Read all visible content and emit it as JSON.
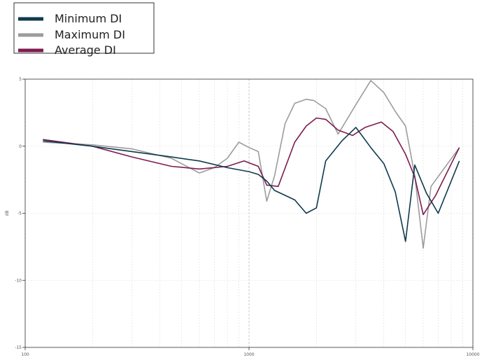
{
  "chart_data": {
    "type": "line",
    "title": "",
    "xlabel": "",
    "ylabel": "dB",
    "x_scale": "log",
    "xlim": [
      100,
      10000
    ],
    "ylim": [
      -15,
      5
    ],
    "x_ticks": [
      100,
      1000,
      10000
    ],
    "x_tick_labels": [
      "100",
      "1000",
      "10000"
    ],
    "y_ticks": [
      5,
      0,
      -5,
      -10,
      -15
    ],
    "y_tick_labels": [
      "5",
      "0",
      "-5",
      "-10",
      "-15"
    ],
    "grid": true,
    "legend_position": "top-left",
    "series": [
      {
        "name": "Minimum DI",
        "color": "#0e3a4e",
        "points": [
          [
            120,
            0.4
          ],
          [
            200,
            0.0
          ],
          [
            300,
            -0.4
          ],
          [
            450,
            -0.8
          ],
          [
            600,
            -1.1
          ],
          [
            800,
            -1.6
          ],
          [
            1000,
            -1.9
          ],
          [
            1100,
            -2.1
          ],
          [
            1200,
            -2.6
          ],
          [
            1300,
            -3.3
          ],
          [
            1600,
            -4.0
          ],
          [
            1800,
            -5.0
          ],
          [
            2000,
            -4.6
          ],
          [
            2200,
            -1.1
          ],
          [
            2600,
            0.4
          ],
          [
            3000,
            1.4
          ],
          [
            3500,
            -0.1
          ],
          [
            4000,
            -1.3
          ],
          [
            4500,
            -3.4
          ],
          [
            5000,
            -7.1
          ],
          [
            5500,
            -1.4
          ],
          [
            6200,
            -3.5
          ],
          [
            7000,
            -5.0
          ],
          [
            8700,
            -1.1
          ]
        ]
      },
      {
        "name": "Maximum DI",
        "color": "#9c9c9c",
        "points": [
          [
            120,
            0.3
          ],
          [
            200,
            0.1
          ],
          [
            300,
            -0.2
          ],
          [
            450,
            -0.9
          ],
          [
            600,
            -2.0
          ],
          [
            700,
            -1.6
          ],
          [
            800,
            -0.9
          ],
          [
            900,
            0.3
          ],
          [
            1000,
            -0.1
          ],
          [
            1100,
            -0.4
          ],
          [
            1200,
            -4.1
          ],
          [
            1300,
            -2.2
          ],
          [
            1450,
            1.7
          ],
          [
            1600,
            3.2
          ],
          [
            1800,
            3.5
          ],
          [
            1950,
            3.4
          ],
          [
            2200,
            2.8
          ],
          [
            2500,
            0.9
          ],
          [
            3000,
            3.1
          ],
          [
            3500,
            4.9
          ],
          [
            4000,
            4.0
          ],
          [
            4500,
            2.6
          ],
          [
            5000,
            1.5
          ],
          [
            5500,
            -2.2
          ],
          [
            6000,
            -7.6
          ],
          [
            6500,
            -3.0
          ],
          [
            8700,
            -0.1
          ]
        ]
      },
      {
        "name": "Average DI",
        "color": "#7d1c4f",
        "points": [
          [
            120,
            0.5
          ],
          [
            200,
            0.0
          ],
          [
            300,
            -0.8
          ],
          [
            450,
            -1.5
          ],
          [
            600,
            -1.7
          ],
          [
            800,
            -1.5
          ],
          [
            950,
            -1.1
          ],
          [
            1100,
            -1.5
          ],
          [
            1200,
            -2.9
          ],
          [
            1350,
            -3.0
          ],
          [
            1600,
            0.3
          ],
          [
            1800,
            1.5
          ],
          [
            2000,
            2.1
          ],
          [
            2200,
            2.0
          ],
          [
            2500,
            1.2
          ],
          [
            2900,
            0.8
          ],
          [
            3300,
            1.4
          ],
          [
            3900,
            1.8
          ],
          [
            4400,
            1.1
          ],
          [
            5000,
            -0.6
          ],
          [
            5500,
            -2.3
          ],
          [
            6000,
            -5.1
          ],
          [
            6800,
            -3.7
          ],
          [
            8700,
            -0.1
          ]
        ]
      }
    ]
  }
}
